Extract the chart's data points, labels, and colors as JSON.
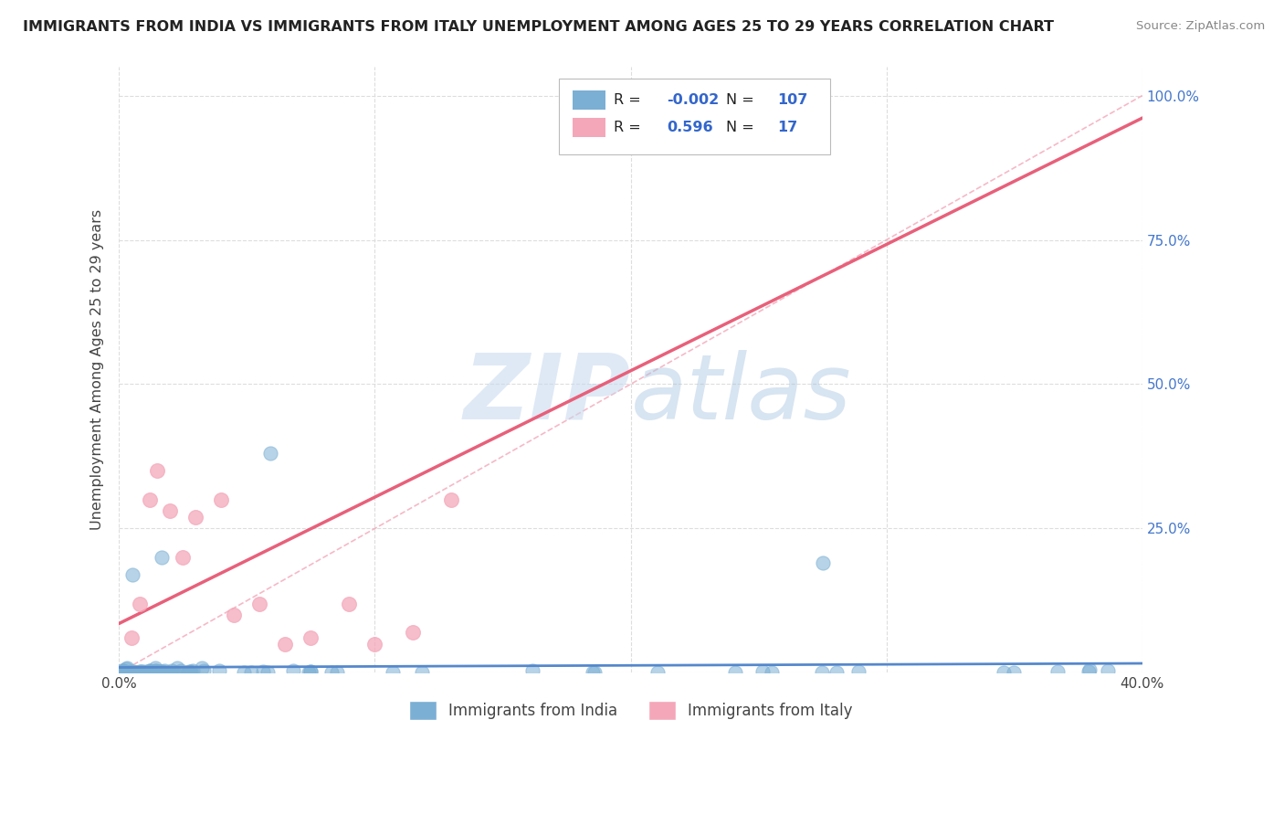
{
  "title": "IMMIGRANTS FROM INDIA VS IMMIGRANTS FROM ITALY UNEMPLOYMENT AMONG AGES 25 TO 29 YEARS CORRELATION CHART",
  "source": "Source: ZipAtlas.com",
  "ylabel": "Unemployment Among Ages 25 to 29 years",
  "xlabel": "",
  "xlim": [
    0.0,
    0.4
  ],
  "ylim": [
    0.0,
    1.05
  ],
  "xticks": [
    0.0,
    0.1,
    0.2,
    0.3,
    0.4
  ],
  "xticklabels": [
    "0.0%",
    "",
    "",
    "",
    "40.0%"
  ],
  "yticks": [
    0.0,
    0.25,
    0.5,
    0.75,
    1.0
  ],
  "yticklabels": [
    "",
    "25.0%",
    "50.0%",
    "75.0%",
    "100.0%"
  ],
  "india_color": "#7BAFD4",
  "italy_color": "#F4A7B9",
  "india_trend_color": "#5588CC",
  "italy_trend_color": "#E8607A",
  "india_R": -0.002,
  "india_N": 107,
  "italy_R": 0.596,
  "italy_N": 17,
  "watermark_zip": "ZIP",
  "watermark_atlas": "atlas",
  "background_color": "#ffffff",
  "grid_color": "#dddddd",
  "legend_box_color": "#eeeeee"
}
